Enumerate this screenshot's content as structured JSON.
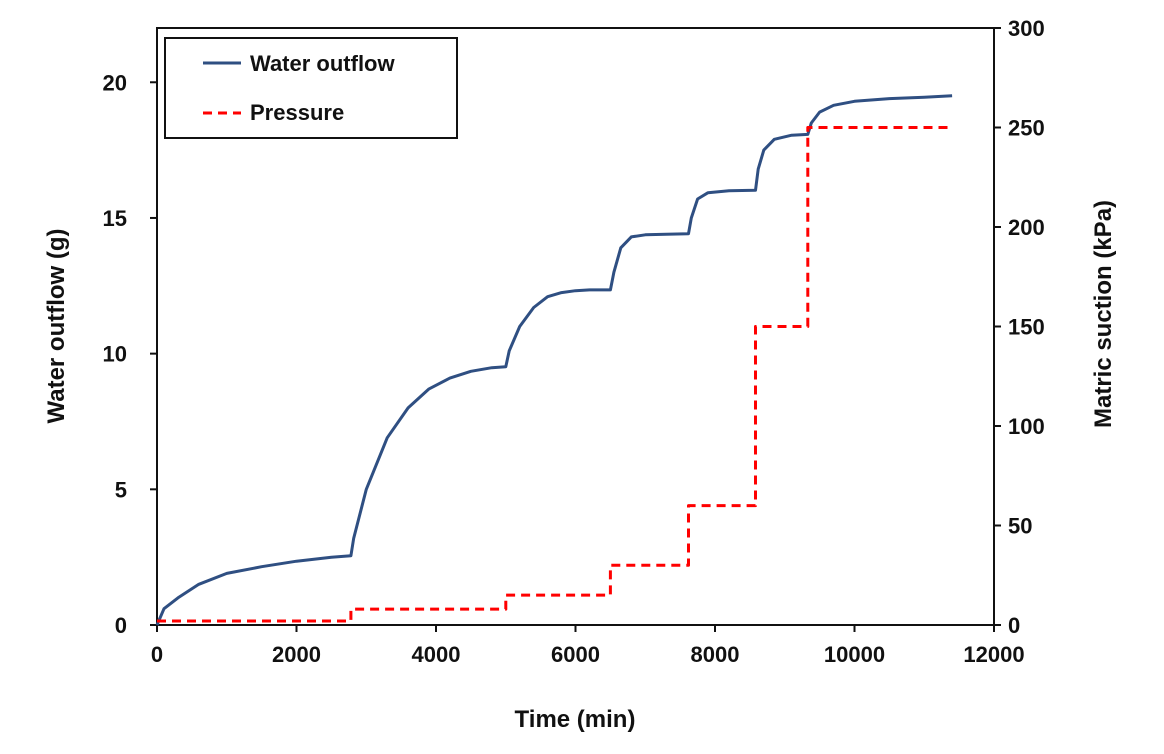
{
  "chart_data": {
    "type": "line",
    "title": "",
    "xlabel": "Time (min)",
    "ylabel": "Water outflow (g)",
    "y2label": "Matric suction (kPa)",
    "xlim": [
      0,
      12000
    ],
    "ylim": [
      0,
      22
    ],
    "y2lim": [
      0,
      300
    ],
    "xticks": [
      "0",
      "2000",
      "4000",
      "6000",
      "8000",
      "10000",
      "12000"
    ],
    "yticks": [
      "0",
      "5",
      "10",
      "15",
      "20"
    ],
    "y2ticks": [
      "0",
      "50",
      "100",
      "150",
      "200",
      "250",
      "300"
    ],
    "grid": false,
    "legend_position": "top-left",
    "colors": {
      "water_outflow": "#2f4f82",
      "pressure": "#ff0000"
    },
    "series": [
      {
        "name": "Water outflow",
        "axis": "left",
        "style": "solid",
        "x": [
          0,
          100,
          300,
          600,
          1000,
          1500,
          2000,
          2500,
          2780,
          2820,
          3000,
          3300,
          3600,
          3900,
          4200,
          4500,
          4800,
          5000,
          5050,
          5200,
          5400,
          5600,
          5800,
          6000,
          6200,
          6500,
          6550,
          6650,
          6800,
          7000,
          7300,
          7620,
          7660,
          7750,
          7900,
          8200,
          8580,
          8620,
          8700,
          8850,
          9100,
          9330,
          9380,
          9500,
          9700,
          10000,
          10500,
          11000,
          11400
        ],
        "y": [
          0,
          0.6,
          1.0,
          1.5,
          1.9,
          2.15,
          2.35,
          2.5,
          2.55,
          3.2,
          5.0,
          6.9,
          8.0,
          8.7,
          9.1,
          9.35,
          9.48,
          9.52,
          10.1,
          11.0,
          11.7,
          12.1,
          12.25,
          12.32,
          12.35,
          12.35,
          13.0,
          13.9,
          14.3,
          14.38,
          14.4,
          14.42,
          15.0,
          15.7,
          15.93,
          16.0,
          16.02,
          16.8,
          17.5,
          17.9,
          18.05,
          18.08,
          18.5,
          18.9,
          19.15,
          19.3,
          19.4,
          19.45,
          19.5
        ]
      },
      {
        "name": "Pressure",
        "axis": "right",
        "style": "dashed",
        "x": [
          0,
          2780,
          2780,
          5000,
          5000,
          6500,
          6500,
          7620,
          7620,
          8580,
          8580,
          9330,
          9330,
          11400
        ],
        "y": [
          2,
          2,
          8,
          8,
          15,
          15,
          30,
          30,
          60,
          60,
          150,
          150,
          250,
          250
        ]
      }
    ]
  }
}
